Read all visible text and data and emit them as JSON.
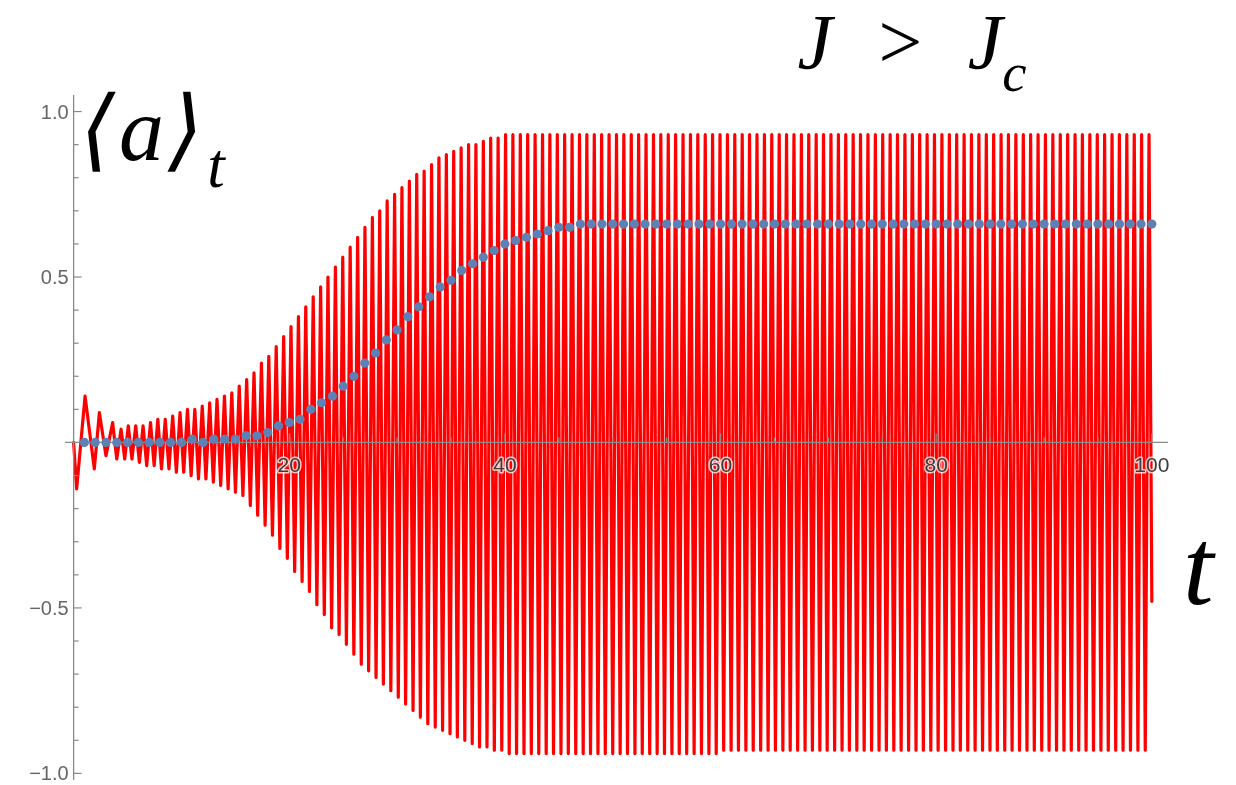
{
  "chart_data": {
    "type": "line",
    "title": "J > J$_{c}$",
    "xlabel": "t",
    "ylabel": "⟨a⟩$_{t}$",
    "xlim": [
      -0.8,
      101.5
    ],
    "ylim": [
      -1.02,
      1.05
    ],
    "xticks": [
      {
        "value": 5,
        "label": null
      },
      {
        "value": 10,
        "label": null
      },
      {
        "value": 15,
        "label": null
      },
      20,
      {
        "value": 25,
        "label": null
      },
      {
        "value": 30,
        "label": null
      },
      {
        "value": 35,
        "label": null
      },
      40,
      {
        "value": 45,
        "label": null
      },
      {
        "value": 50,
        "label": null
      },
      {
        "value": 55,
        "label": null
      },
      60,
      {
        "value": 65,
        "label": null
      },
      {
        "value": 70,
        "label": null
      },
      {
        "value": 75,
        "label": null
      },
      80,
      {
        "value": 85,
        "label": null
      },
      {
        "value": 90,
        "label": null
      },
      {
        "value": 95,
        "label": null
      },
      100
    ],
    "yticks": [
      {
        "value": -1,
        "label": "−1.0"
      },
      {
        "value": -0.9,
        "label": null
      },
      {
        "value": -0.8,
        "label": null
      },
      {
        "value": -0.7,
        "label": null
      },
      {
        "value": -0.6,
        "label": null
      },
      {
        "value": -0.5,
        "label": "−0.5"
      },
      {
        "value": -0.4,
        "label": null
      },
      {
        "value": -0.3,
        "label": null
      },
      {
        "value": -0.2,
        "label": null
      },
      {
        "value": -0.1,
        "label": null
      },
      {
        "value": 0.1,
        "label": null
      },
      {
        "value": 0.2,
        "label": null
      },
      {
        "value": 0.3,
        "label": null
      },
      {
        "value": 0.4,
        "label": null
      },
      {
        "value": 0.5,
        "label": "0.5"
      },
      {
        "value": 0.6,
        "label": null
      },
      {
        "value": 0.7,
        "label": null
      },
      {
        "value": 0.8,
        "label": null
      },
      {
        "value": 0.9,
        "label": null
      },
      {
        "value": 1,
        "label": "1.0"
      }
    ],
    "series": [
      {
        "type": "line",
        "color": "#ff0000",
        "marker": "none",
        "line_style": "solid",
        "x": [
          0,
          0.28,
          1.06,
          1.92,
          2.39,
          3.0,
          3.62,
          4.0,
          4.4,
          4.74,
          5.07,
          5.41,
          5.76,
          6.1,
          6.44,
          6.78,
          7.13,
          7.47,
          7.81,
          8.15,
          8.5,
          8.84,
          9.19,
          9.53,
          9.87,
          10.21,
          10.56,
          10.9,
          11.24,
          11.58,
          11.93,
          12.27,
          12.62,
          12.96,
          13.3,
          13.64,
          13.99,
          14.33,
          14.67,
          15.01,
          15.36,
          15.7,
          16.05,
          16.39,
          16.73,
          17.07,
          17.42,
          17.76,
          18.1,
          18.44,
          18.79,
          19.13,
          19.48,
          19.82,
          20.16,
          20.5,
          20.85,
          21.19,
          21.53,
          21.87,
          22.22,
          22.56,
          22.91,
          23.25,
          23.59,
          23.93,
          24.28,
          24.62,
          24.96,
          25.3,
          25.65,
          25.99,
          26.34,
          26.68,
          27.02,
          27.36,
          27.71,
          28.05,
          28.39,
          28.73,
          29.08,
          29.42,
          29.77,
          30.11,
          30.45,
          30.79,
          31.14,
          31.48,
          31.82,
          32.16,
          32.51,
          32.85,
          33.2,
          33.54,
          33.88,
          34.22,
          34.57,
          34.91,
          35.25,
          35.59,
          35.94,
          36.28,
          36.63,
          36.97,
          37.31,
          37.65,
          38.0,
          38.34,
          38.68,
          39.02,
          39.37,
          39.71,
          40.06,
          40.4,
          40.74,
          41.08,
          41.43,
          41.77,
          42.11,
          42.45,
          42.8,
          43.14,
          43.49,
          43.83,
          44.17,
          44.51,
          44.86,
          45.2,
          45.54,
          45.88,
          46.23,
          46.57,
          46.92,
          47.26,
          47.6,
          47.94,
          48.29,
          48.63,
          48.97,
          49.31,
          49.66,
          50.0,
          50.35,
          50.69,
          51.03,
          51.37,
          51.72,
          52.06,
          52.4,
          52.74,
          53.09,
          53.43,
          53.78,
          54.12,
          54.46,
          54.8,
          55.15,
          55.49,
          55.83,
          56.17,
          56.52,
          56.86,
          57.21,
          57.55,
          57.89,
          58.23,
          58.58,
          58.92,
          59.26,
          59.6,
          59.95,
          60.29,
          60.64,
          60.98,
          61.32,
          61.66,
          62.01,
          62.35,
          62.69,
          63.03,
          63.38,
          63.72,
          64.07,
          64.41,
          64.75,
          65.09,
          65.44,
          65.78,
          66.12,
          66.46,
          66.81,
          67.15,
          67.5,
          67.84,
          68.18,
          68.52,
          68.87,
          69.21,
          69.55,
          69.89,
          70.24,
          70.58,
          70.93,
          71.27,
          71.61,
          71.95,
          72.3,
          72.64,
          72.98,
          73.32,
          73.67,
          74.01,
          74.36,
          74.7,
          75.04,
          75.38,
          75.73,
          76.07,
          76.41,
          76.75,
          77.1,
          77.44,
          77.79,
          78.13,
          78.47,
          78.81,
          79.16,
          79.5,
          79.84,
          80.18,
          80.53,
          80.87,
          81.22,
          81.56,
          81.9,
          82.24,
          82.59,
          82.93,
          83.27,
          83.61,
          83.96,
          84.3,
          84.65,
          84.99,
          85.33,
          85.67,
          86.02,
          86.36,
          86.7,
          87.04,
          87.39,
          87.73,
          88.08,
          88.42,
          88.76,
          89.1,
          89.45,
          89.79,
          90.13,
          90.47,
          90.82,
          91.16,
          91.51,
          91.85,
          92.19,
          92.53,
          92.88,
          93.22,
          93.56,
          93.9,
          94.25,
          94.59,
          94.94,
          95.28,
          95.62,
          95.96,
          96.31,
          96.65,
          96.99,
          97.33,
          97.68,
          98.02,
          98.37,
          98.71,
          99.05,
          99.39,
          99.74,
          100
        ],
        "values": [
          0,
          -0.14,
          0.14,
          -0.08,
          0.09,
          -0.04,
          0.06,
          -0.05,
          0.04,
          -0.05,
          0.05,
          -0.05,
          0.05,
          -0.06,
          0.05,
          -0.07,
          0.06,
          -0.07,
          0.07,
          -0.08,
          0.07,
          -0.08,
          0.08,
          -0.09,
          0.09,
          -0.09,
          0.1,
          -0.1,
          0.1,
          -0.11,
          0.11,
          -0.11,
          0.12,
          -0.12,
          0.13,
          -0.13,
          0.14,
          -0.14,
          0.15,
          -0.15,
          0.17,
          -0.16,
          0.19,
          -0.19,
          0.21,
          -0.22,
          0.24,
          -0.25,
          0.26,
          -0.28,
          0.29,
          -0.32,
          0.32,
          -0.35,
          0.35,
          -0.39,
          0.38,
          -0.42,
          0.41,
          -0.45,
          0.44,
          -0.49,
          0.47,
          -0.52,
          0.5,
          -0.56,
          0.53,
          -0.58,
          0.56,
          -0.61,
          0.59,
          -0.64,
          0.62,
          -0.67,
          0.65,
          -0.69,
          0.68,
          -0.71,
          0.7,
          -0.73,
          0.73,
          -0.75,
          0.75,
          -0.77,
          0.77,
          -0.79,
          0.79,
          -0.81,
          0.81,
          -0.83,
          0.82,
          -0.85,
          0.84,
          -0.86,
          0.86,
          -0.87,
          0.87,
          -0.88,
          0.88,
          -0.89,
          0.89,
          -0.9,
          0.9,
          -0.91,
          0.9,
          -0.92,
          0.91,
          -0.92,
          0.92,
          -0.93,
          0.92,
          -0.93,
          0.93,
          -0.94,
          0.93,
          -0.94,
          0.93,
          -0.94,
          0.93,
          -0.94,
          0.93,
          -0.94,
          0.93,
          -0.94,
          0.93,
          -0.94,
          0.93,
          -0.94,
          0.93,
          -0.94,
          0.93,
          -0.94,
          0.93,
          -0.94,
          0.93,
          -0.94,
          0.93,
          -0.94,
          0.93,
          -0.94,
          0.93,
          -0.94,
          0.93,
          -0.94,
          0.93,
          -0.94,
          0.93,
          -0.94,
          0.93,
          -0.94,
          0.93,
          -0.94,
          0.93,
          -0.94,
          0.93,
          -0.94,
          0.93,
          -0.94,
          0.93,
          -0.94,
          0.93,
          -0.94,
          0.93,
          -0.94,
          0.93,
          -0.94,
          0.93,
          -0.94,
          0.93,
          -0.94,
          0.93,
          -0.93,
          0.93,
          -0.93,
          0.93,
          -0.93,
          0.93,
          -0.93,
          0.93,
          -0.93,
          0.93,
          -0.93,
          0.93,
          -0.93,
          0.93,
          -0.93,
          0.93,
          -0.93,
          0.93,
          -0.93,
          0.93,
          -0.93,
          0.93,
          -0.93,
          0.93,
          -0.93,
          0.93,
          -0.93,
          0.93,
          -0.93,
          0.93,
          -0.93,
          0.93,
          -0.93,
          0.93,
          -0.93,
          0.93,
          -0.93,
          0.93,
          -0.93,
          0.93,
          -0.93,
          0.93,
          -0.93,
          0.93,
          -0.93,
          0.93,
          -0.93,
          0.93,
          -0.93,
          0.93,
          -0.93,
          0.93,
          -0.93,
          0.93,
          -0.93,
          0.93,
          -0.93,
          0.93,
          -0.93,
          0.93,
          -0.93,
          0.93,
          -0.93,
          0.93,
          -0.93,
          0.93,
          -0.93,
          0.93,
          -0.93,
          0.93,
          -0.93,
          0.93,
          -0.93,
          0.93,
          -0.93,
          0.93,
          -0.93,
          0.93,
          -0.93,
          0.93,
          -0.93,
          0.93,
          -0.93,
          0.93,
          -0.93,
          0.93,
          -0.93,
          0.93,
          -0.93,
          0.93,
          -0.93,
          0.93,
          -0.93,
          0.93,
          -0.93,
          0.93,
          -0.93,
          0.93,
          -0.93,
          0.93,
          -0.93,
          0.93,
          -0.93,
          0.93,
          -0.93,
          0.93,
          -0.93,
          0.93,
          -0.93,
          0.93,
          -0.93,
          0.93,
          -0.93,
          0.93,
          -0.93,
          0.93,
          -0.48
        ]
      },
      {
        "type": "scatter",
        "color": "#5e81b5",
        "marker": "circle",
        "x": [
          1,
          2,
          3,
          4,
          5,
          6,
          7,
          8,
          9,
          10,
          11,
          12,
          13,
          14,
          15,
          16,
          17,
          18,
          19,
          20,
          21,
          22,
          23,
          24,
          25,
          26,
          27,
          28,
          29,
          30,
          31,
          32,
          33,
          34,
          35,
          36,
          37,
          38,
          39,
          40,
          41,
          42,
          43,
          44,
          45,
          46,
          47,
          48,
          49,
          50,
          51,
          52,
          53,
          54,
          55,
          56,
          57,
          58,
          59,
          60,
          61,
          62,
          63,
          64,
          65,
          66,
          67,
          68,
          69,
          70,
          71,
          72,
          73,
          74,
          75,
          76,
          77,
          78,
          79,
          80,
          81,
          82,
          83,
          84,
          85,
          86,
          87,
          88,
          89,
          90,
          91,
          92,
          93,
          94,
          95,
          96,
          97,
          98,
          99,
          100
        ],
        "values": [
          0,
          0,
          0,
          0,
          0,
          0,
          0,
          0,
          0,
          0,
          0.01,
          0,
          0.01,
          0.01,
          0.01,
          0.02,
          0.02,
          0.03,
          0.05,
          0.06,
          0.07,
          0.1,
          0.12,
          0.14,
          0.17,
          0.2,
          0.24,
          0.27,
          0.31,
          0.34,
          0.38,
          0.41,
          0.44,
          0.47,
          0.49,
          0.52,
          0.54,
          0.56,
          0.58,
          0.6,
          0.61,
          0.62,
          0.63,
          0.64,
          0.65,
          0.65,
          0.66,
          0.66,
          0.66,
          0.66,
          0.66,
          0.66,
          0.66,
          0.66,
          0.66,
          0.66,
          0.66,
          0.66,
          0.66,
          0.66,
          0.66,
          0.66,
          0.66,
          0.66,
          0.66,
          0.66,
          0.66,
          0.66,
          0.66,
          0.66,
          0.66,
          0.66,
          0.66,
          0.66,
          0.66,
          0.66,
          0.66,
          0.66,
          0.66,
          0.66,
          0.66,
          0.66,
          0.66,
          0.66,
          0.66,
          0.66,
          0.66,
          0.66,
          0.66,
          0.66,
          0.66,
          0.66,
          0.66,
          0.66,
          0.66,
          0.66,
          0.66,
          0.66,
          0.66,
          0.66
        ]
      }
    ]
  }
}
